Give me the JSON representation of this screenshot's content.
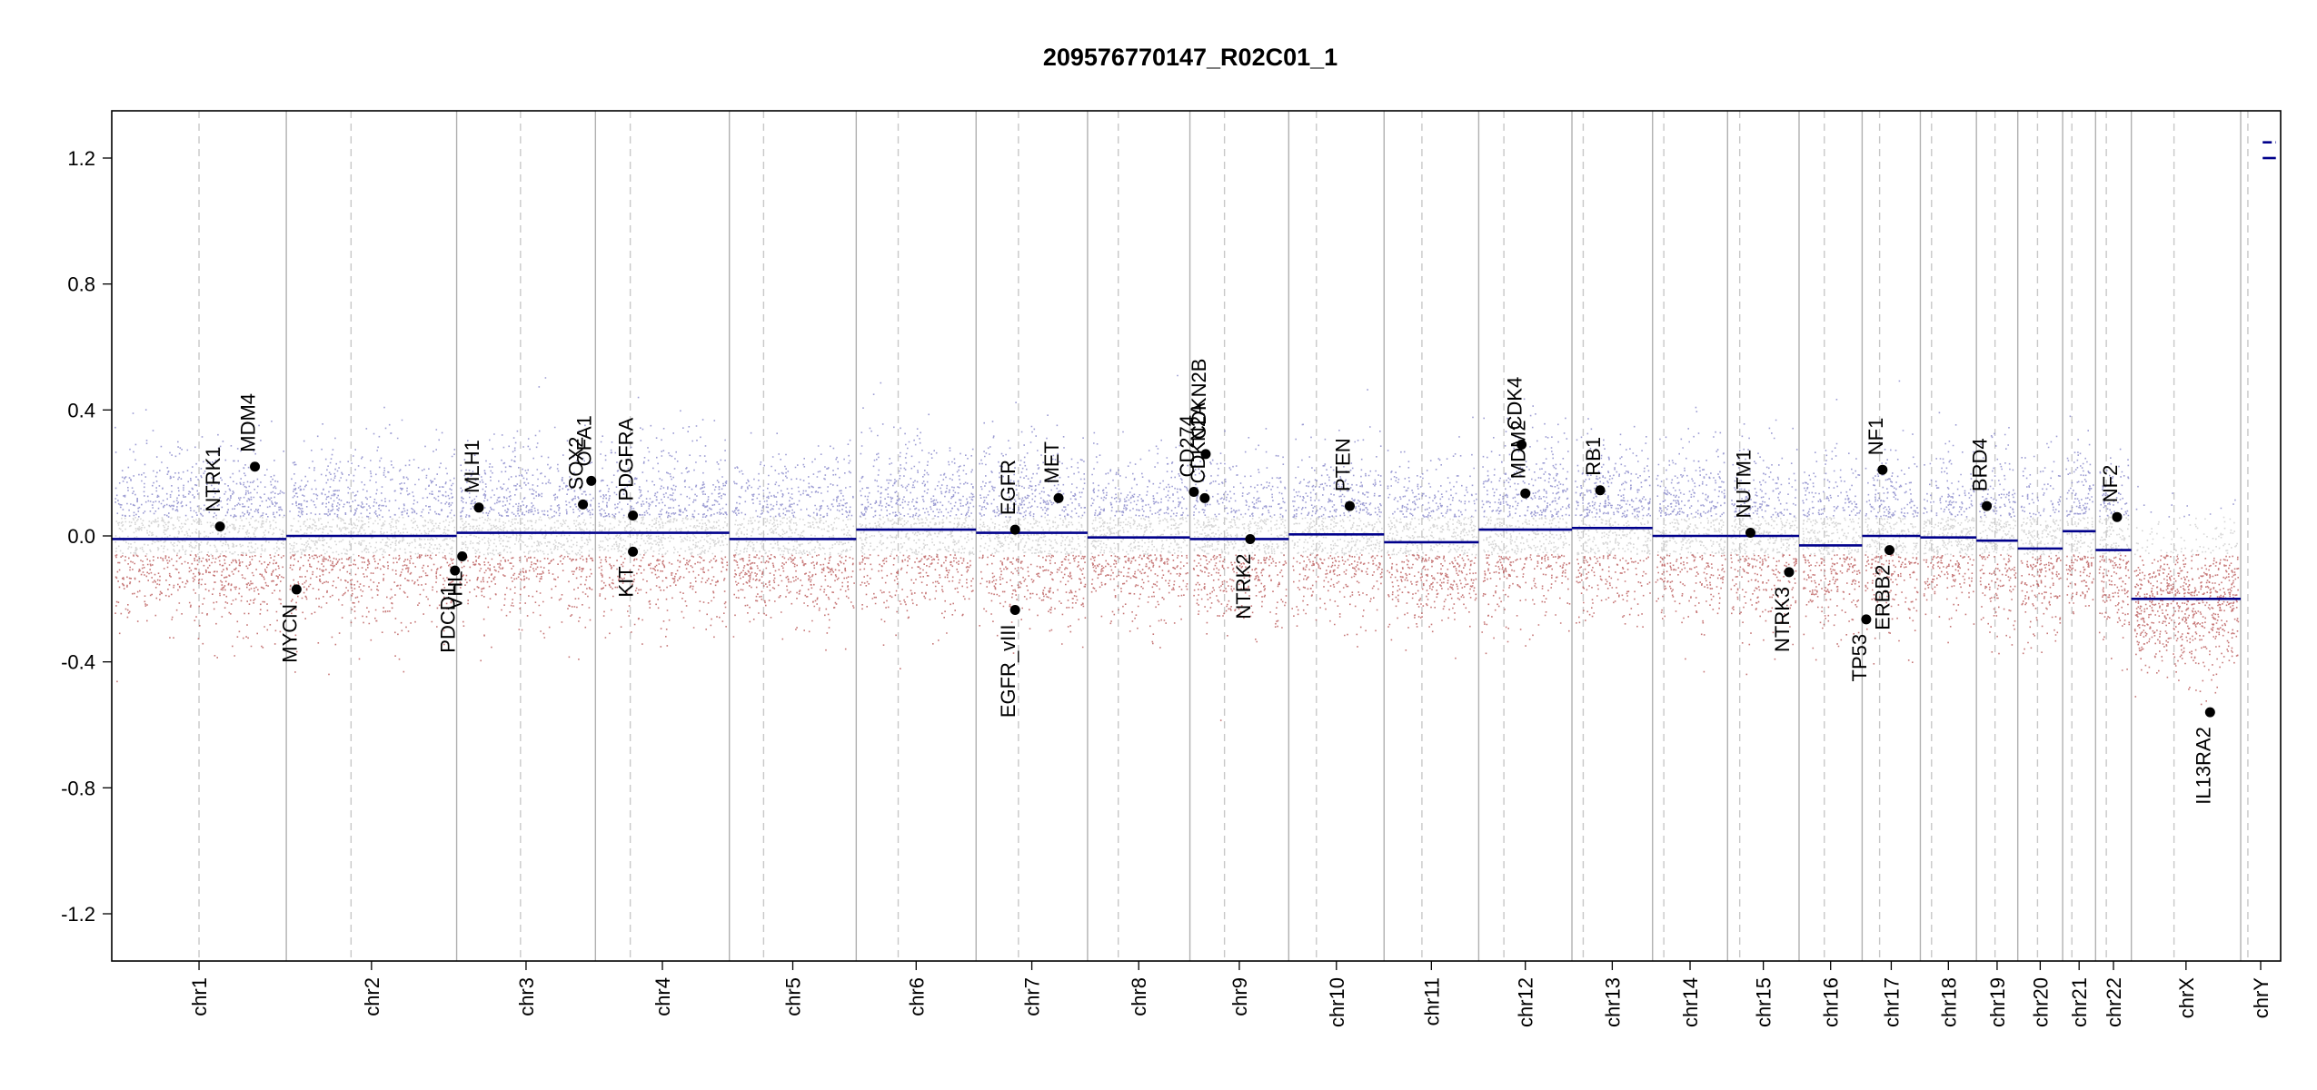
{
  "chart_data": {
    "type": "scatter",
    "title": "209576770147_R02C01_1",
    "xlabel": "",
    "ylabel": "",
    "ylim": [
      -1.35,
      1.35
    ],
    "y_ticks": [
      "1.2",
      "0.8",
      "0.4",
      "0.0",
      "-0.4",
      "-0.8",
      "-1.2"
    ],
    "y_tick_values": [
      1.2,
      0.8,
      0.4,
      0.0,
      -0.4,
      -0.8,
      -1.2
    ],
    "grid": false,
    "colors": {
      "gain": "#7b7bc4",
      "loss": "#b34a4a",
      "neutral": "#c8c8c8",
      "segment": "#00008b",
      "gene_marker": "#000000",
      "chrom_boundary": "#b0b0b0",
      "centromere": "#c8c8c8"
    },
    "chromosomes": [
      {
        "name": "chr1",
        "size": 249,
        "centromere": 0.5,
        "segment": -0.01,
        "spread": 0.13
      },
      {
        "name": "chr2",
        "size": 243,
        "centromere": 0.38,
        "segment": 0.0,
        "spread": 0.13
      },
      {
        "name": "chr3",
        "size": 198,
        "centromere": 0.46,
        "segment": 0.01,
        "spread": 0.13
      },
      {
        "name": "chr4",
        "size": 191,
        "centromere": 0.26,
        "segment": 0.01,
        "spread": 0.13
      },
      {
        "name": "chr5",
        "size": 181,
        "centromere": 0.27,
        "segment": -0.01,
        "spread": 0.12
      },
      {
        "name": "chr6",
        "size": 171,
        "centromere": 0.35,
        "segment": 0.02,
        "spread": 0.13
      },
      {
        "name": "chr7",
        "size": 159,
        "centromere": 0.38,
        "segment": 0.01,
        "spread": 0.13
      },
      {
        "name": "chr8",
        "size": 146,
        "centromere": 0.3,
        "segment": -0.005,
        "spread": 0.12
      },
      {
        "name": "chr9",
        "size": 141,
        "centromere": 0.35,
        "segment": -0.01,
        "spread": 0.12
      },
      {
        "name": "chr10",
        "size": 136,
        "centromere": 0.29,
        "segment": 0.005,
        "spread": 0.12
      },
      {
        "name": "chr11",
        "size": 135,
        "centromere": 0.4,
        "segment": -0.02,
        "spread": 0.12
      },
      {
        "name": "chr12",
        "size": 133,
        "centromere": 0.27,
        "segment": 0.02,
        "spread": 0.13
      },
      {
        "name": "chr13",
        "size": 115,
        "centromere": 0.14,
        "segment": 0.025,
        "spread": 0.13
      },
      {
        "name": "chr14",
        "size": 107,
        "centromere": 0.15,
        "segment": 0.0,
        "spread": 0.13
      },
      {
        "name": "chr15",
        "size": 102,
        "centromere": 0.17,
        "segment": 0.0,
        "spread": 0.13
      },
      {
        "name": "chr16",
        "size": 90,
        "centromere": 0.4,
        "segment": -0.03,
        "spread": 0.13
      },
      {
        "name": "chr17",
        "size": 83,
        "centromere": 0.3,
        "segment": 0.0,
        "spread": 0.13
      },
      {
        "name": "chr18",
        "size": 80,
        "centromere": 0.2,
        "segment": -0.005,
        "spread": 0.12
      },
      {
        "name": "chr19",
        "size": 59,
        "centromere": 0.45,
        "segment": -0.015,
        "spread": 0.13
      },
      {
        "name": "chr20",
        "size": 64,
        "centromere": 0.44,
        "segment": -0.04,
        "spread": 0.13
      },
      {
        "name": "chr21",
        "size": 47,
        "centromere": 0.28,
        "segment": 0.015,
        "spread": 0.13
      },
      {
        "name": "chr22",
        "size": 51,
        "centromere": 0.3,
        "segment": -0.045,
        "spread": 0.13
      },
      {
        "name": "chrX",
        "size": 156,
        "centromere": 0.39,
        "segment": -0.2,
        "spread": 0.12
      },
      {
        "name": "chrY",
        "size": 57,
        "centromere": 0.18,
        "segment": 1.2,
        "spread": 0.0
      }
    ],
    "chrY_segments": [
      1.2,
      1.25
    ],
    "genes": [
      {
        "name": "NTRK1",
        "chrom": "chr1",
        "pos": 0.62,
        "value": 0.03
      },
      {
        "name": "MDM4",
        "chrom": "chr1",
        "pos": 0.82,
        "value": 0.22
      },
      {
        "name": "MYCN",
        "chrom": "chr2",
        "pos": 0.06,
        "value": -0.17
      },
      {
        "name": "PDCD1",
        "chrom": "chr2",
        "pos": 0.99,
        "value": -0.11
      },
      {
        "name": "VHL",
        "chrom": "chr3",
        "pos": 0.04,
        "value": -0.065
      },
      {
        "name": "MLH1",
        "chrom": "chr3",
        "pos": 0.16,
        "value": 0.09
      },
      {
        "name": "SOX2",
        "chrom": "chr3",
        "pos": 0.91,
        "value": 0.1
      },
      {
        "name": "OFA1",
        "chrom": "chr3",
        "pos": 0.97,
        "value": 0.175
      },
      {
        "name": "PDGFRA",
        "chrom": "chr4",
        "pos": 0.28,
        "value": 0.065
      },
      {
        "name": "KIT",
        "chrom": "chr4",
        "pos": 0.28,
        "value": -0.05
      },
      {
        "name": "EGFR",
        "chrom": "chr7",
        "pos": 0.35,
        "value": 0.02
      },
      {
        "name": "EGFR_vIII",
        "chrom": "chr7",
        "pos": 0.35,
        "value": -0.235
      },
      {
        "name": "MET",
        "chrom": "chr7",
        "pos": 0.74,
        "value": 0.12
      },
      {
        "name": "CD274",
        "chrom": "chr9",
        "pos": 0.04,
        "value": 0.14
      },
      {
        "name": "CDKN2A",
        "chrom": "chr9",
        "pos": 0.15,
        "value": 0.12
      },
      {
        "name": "CDKN2B",
        "chrom": "chr9",
        "pos": 0.16,
        "value": 0.26
      },
      {
        "name": "NTRK2",
        "chrom": "chr9",
        "pos": 0.61,
        "value": -0.01
      },
      {
        "name": "PTEN",
        "chrom": "chr10",
        "pos": 0.64,
        "value": 0.095
      },
      {
        "name": "CDK4",
        "chrom": "chr12",
        "pos": 0.46,
        "value": 0.29
      },
      {
        "name": "MDM2",
        "chrom": "chr12",
        "pos": 0.5,
        "value": 0.135
      },
      {
        "name": "RB1",
        "chrom": "chr13",
        "pos": 0.35,
        "value": 0.145
      },
      {
        "name": "NUTM1",
        "chrom": "chr15",
        "pos": 0.32,
        "value": 0.01
      },
      {
        "name": "NTRK3",
        "chrom": "chr15",
        "pos": 0.86,
        "value": -0.115
      },
      {
        "name": "TP53",
        "chrom": "chr17",
        "pos": 0.07,
        "value": -0.265
      },
      {
        "name": "NF1",
        "chrom": "chr17",
        "pos": 0.35,
        "value": 0.21
      },
      {
        "name": "ERBB2",
        "chrom": "chr17",
        "pos": 0.47,
        "value": -0.045
      },
      {
        "name": "BRD4",
        "chrom": "chr19",
        "pos": 0.25,
        "value": 0.095
      },
      {
        "name": "NF2",
        "chrom": "chr22",
        "pos": 0.6,
        "value": 0.06
      },
      {
        "name": "IL13RA2",
        "chrom": "chrX",
        "pos": 0.72,
        "value": -0.56
      }
    ]
  }
}
